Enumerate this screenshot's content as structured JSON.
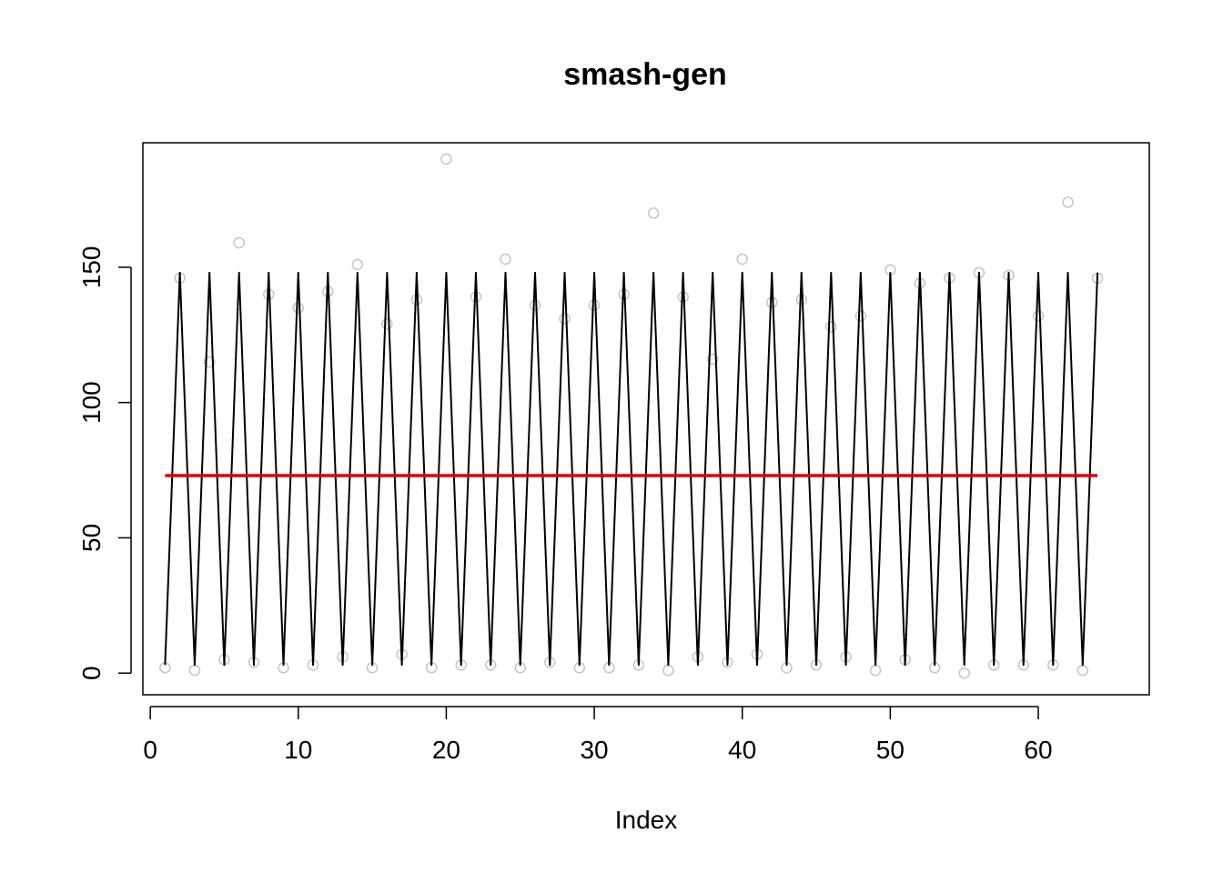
{
  "chart_data": {
    "type": "scatter",
    "title": "smash-gen",
    "xlabel": "Index",
    "ylabel": "",
    "xlim": [
      -0.5,
      67.5
    ],
    "ylim": [
      -8,
      196
    ],
    "x_ticks": [
      0,
      10,
      20,
      30,
      40,
      50,
      60
    ],
    "y_ticks": [
      0,
      50,
      100,
      150
    ],
    "grid": false,
    "legend": "none",
    "colors": {
      "points": "#c8c8c8",
      "estimate_line": "#000000",
      "mean_line": "#e00000"
    },
    "series": [
      {
        "type": "points",
        "x": [
          1,
          2,
          3,
          4,
          5,
          6,
          7,
          8,
          9,
          10,
          11,
          12,
          13,
          14,
          15,
          16,
          17,
          18,
          19,
          20,
          21,
          22,
          23,
          24,
          25,
          26,
          27,
          28,
          29,
          30,
          31,
          32,
          33,
          34,
          35,
          36,
          37,
          38,
          39,
          40,
          41,
          42,
          43,
          44,
          45,
          46,
          47,
          48,
          49,
          50,
          51,
          52,
          53,
          54,
          55,
          56,
          57,
          58,
          59,
          60,
          61,
          62,
          63,
          64
        ],
        "values": [
          2,
          146,
          1,
          115,
          5,
          159,
          4,
          140,
          2,
          135,
          3,
          141,
          6,
          151,
          2,
          129,
          7,
          138,
          2,
          190,
          3,
          139,
          3,
          153,
          2,
          136,
          4,
          131,
          2,
          136,
          2,
          140,
          3,
          170,
          1,
          139,
          6,
          116,
          4,
          153,
          7,
          137,
          2,
          138,
          3,
          128,
          6,
          132,
          1,
          149,
          5,
          144,
          2,
          146,
          0,
          148,
          3,
          147,
          3,
          132,
          3,
          174,
          1,
          146
        ]
      },
      {
        "type": "line",
        "x": [
          1,
          2,
          3,
          4,
          5,
          6,
          7,
          8,
          9,
          10,
          11,
          12,
          13,
          14,
          15,
          16,
          17,
          18,
          19,
          20,
          21,
          22,
          23,
          24,
          25,
          26,
          27,
          28,
          29,
          30,
          31,
          32,
          33,
          34,
          35,
          36,
          37,
          38,
          39,
          40,
          41,
          42,
          43,
          44,
          45,
          46,
          47,
          48,
          49,
          50,
          51,
          52,
          53,
          54,
          55,
          56,
          57,
          58,
          59,
          60,
          61,
          62,
          63,
          64
        ],
        "values": [
          3,
          148,
          3,
          148,
          3,
          148,
          3,
          148,
          3,
          148,
          3,
          148,
          3,
          148,
          3,
          148,
          3,
          148,
          3,
          148,
          3,
          148,
          3,
          148,
          3,
          148,
          3,
          148,
          3,
          148,
          3,
          148,
          3,
          148,
          3,
          148,
          3,
          148,
          3,
          148,
          3,
          148,
          3,
          148,
          3,
          148,
          3,
          148,
          3,
          148,
          3,
          148,
          3,
          148,
          3,
          148,
          3,
          148,
          3,
          148,
          3,
          148,
          3,
          148
        ]
      },
      {
        "type": "line",
        "x": [
          1,
          64
        ],
        "values": [
          73,
          73
        ]
      }
    ]
  }
}
